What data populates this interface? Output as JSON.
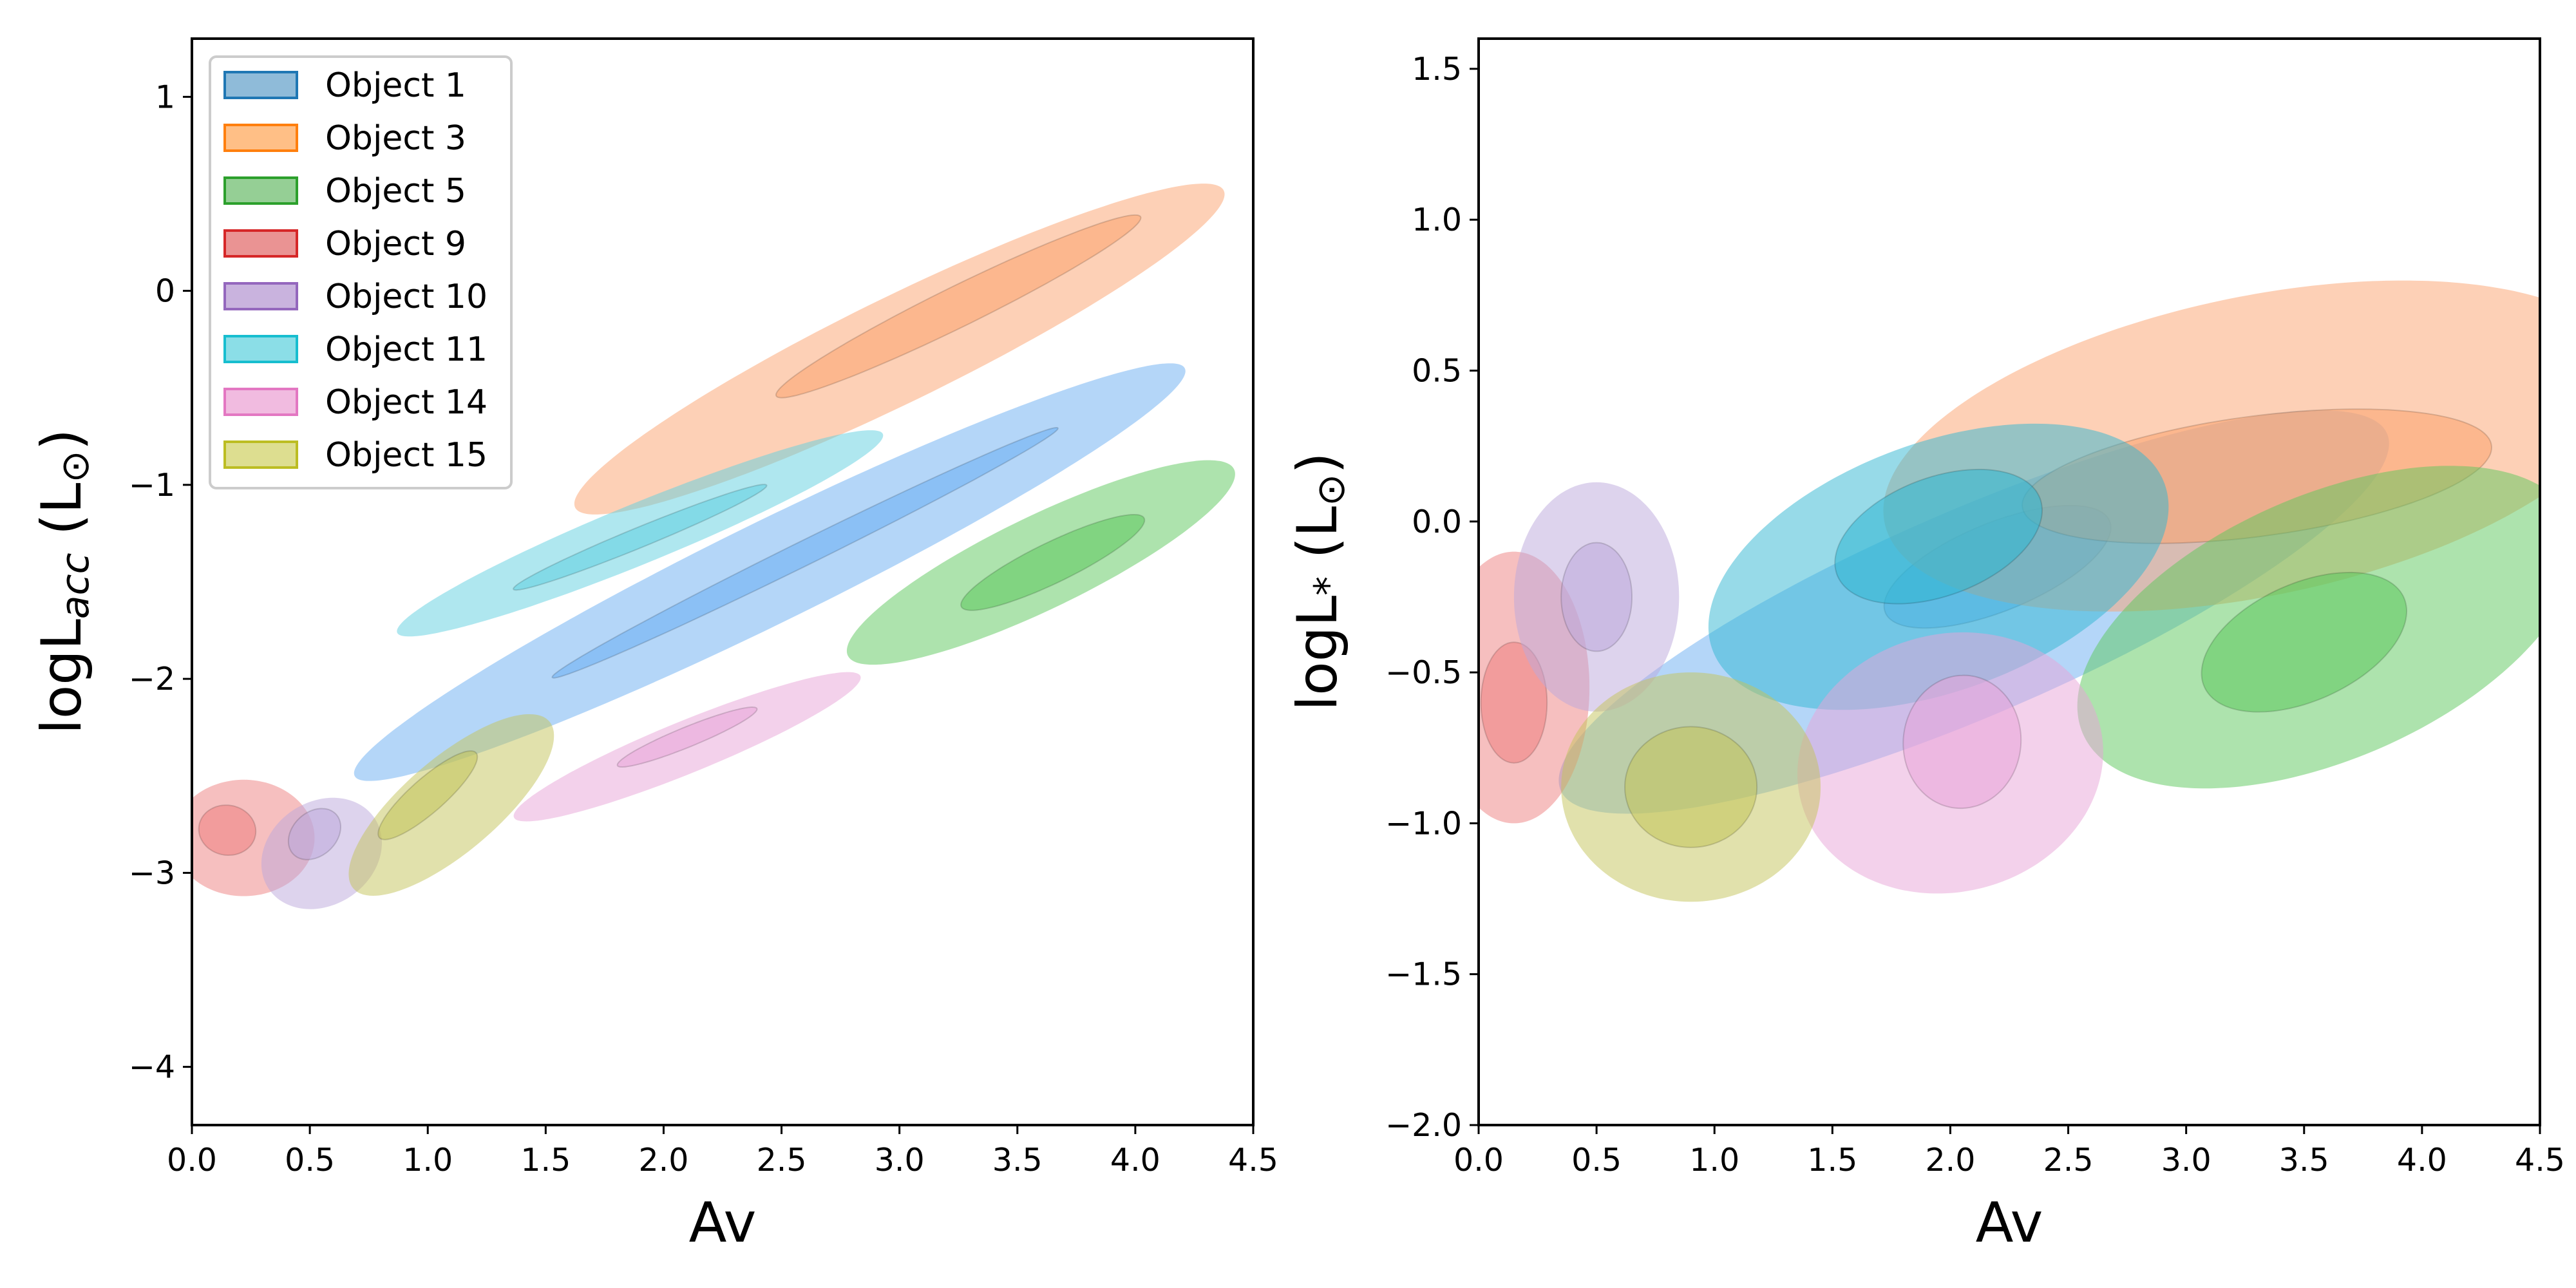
{
  "figure": {
    "panels": 2
  },
  "chart_data": [
    {
      "type": "contour",
      "xlabel": "Av",
      "ylabel_main": "logL",
      "ylabel_sub": "acc",
      "ylabel_unit": " (L",
      "ylabel_unit_sym": "⊙",
      "ylabel_close": ")",
      "xlim": [
        0,
        4.5
      ],
      "ylim": [
        -4.3,
        1.3
      ],
      "xticks": [
        0.0,
        0.5,
        1.0,
        1.5,
        2.0,
        2.5,
        3.0,
        3.5,
        4.0,
        4.5
      ],
      "xtick_labels": [
        "0.0",
        "0.5",
        "1.0",
        "1.5",
        "2.0",
        "2.5",
        "3.0",
        "3.5",
        "4.0",
        "4.5"
      ],
      "yticks": [
        -4,
        -3,
        -2,
        -1,
        0,
        1
      ],
      "ytick_labels": [
        "−4",
        "−3",
        "−2",
        "−1",
        "0",
        "1"
      ],
      "legend": {
        "location": "upper-left",
        "entries": [
          {
            "label": "Object 1",
            "color": "#1f77b4"
          },
          {
            "label": "Object 3",
            "color": "#ff7f0e"
          },
          {
            "label": "Object 5",
            "color": "#2ca02c"
          },
          {
            "label": "Object 9",
            "color": "#d62728"
          },
          {
            "label": "Object 10",
            "color": "#9467bd"
          },
          {
            "label": "Object 11",
            "color": "#17becf"
          },
          {
            "label": "Object 14",
            "color": "#e377c2"
          },
          {
            "label": "Object 15",
            "color": "#bcbd22"
          }
        ]
      },
      "series": [
        {
          "name": "Object 1",
          "color": "#6aaef2",
          "outer": {
            "cx": 2.45,
            "cy": -1.45,
            "sx": 2.05,
            "sw": 0.25,
            "slope": 0.6
          },
          "inner": {
            "cx": 2.6,
            "cy": -1.35,
            "sx": 1.25,
            "sw": 0.06,
            "slope": 0.6
          }
        },
        {
          "name": "Object 3",
          "color": "#fba26d",
          "outer": {
            "cx": 3.0,
            "cy": -0.3,
            "sx": 1.6,
            "sw": 0.26,
            "slope": 0.6
          },
          "inner": {
            "cx": 3.25,
            "cy": -0.08,
            "sx": 0.9,
            "sw": 0.1,
            "slope": 0.6
          }
        },
        {
          "name": "Object 5",
          "color": "#5cc85c",
          "outer": {
            "cx": 3.6,
            "cy": -1.4,
            "sx": 0.95,
            "sw": 0.23,
            "slope": 0.6
          },
          "inner": {
            "cx": 3.65,
            "cy": -1.4,
            "sx": 0.45,
            "sw": 0.1,
            "slope": 0.6
          }
        },
        {
          "name": "Object 9",
          "color": "#ee8080",
          "outer": {
            "cx": 0.22,
            "cy": -2.82,
            "sx": 0.3,
            "sw": 0.3,
            "slope": 0.3
          },
          "inner": {
            "cx": 0.15,
            "cy": -2.78,
            "sx": 0.12,
            "sw": 0.13,
            "slope": 0.3
          }
        },
        {
          "name": "Object 10",
          "color": "#bba7db",
          "outer": {
            "cx": 0.55,
            "cy": -2.9,
            "sx": 0.3,
            "sw": 0.24,
            "slope": 1.8
          },
          "inner": {
            "cx": 0.52,
            "cy": -2.8,
            "sx": 0.14,
            "sw": 0.1,
            "slope": 1.8
          }
        },
        {
          "name": "Object 11",
          "color": "#5fd0e0",
          "outer": {
            "cx": 1.9,
            "cy": -1.25,
            "sx": 1.15,
            "sw": 0.15,
            "slope": 0.5
          },
          "inner": {
            "cx": 1.9,
            "cy": -1.27,
            "sx": 0.6,
            "sw": 0.05,
            "slope": 0.5
          }
        },
        {
          "name": "Object 14",
          "color": "#e8a4d8",
          "outer": {
            "cx": 2.1,
            "cy": -2.35,
            "sx": 0.82,
            "sw": 0.13,
            "slope": 0.5
          },
          "inner": {
            "cx": 2.1,
            "cy": -2.3,
            "sx": 0.33,
            "sw": 0.05,
            "slope": 0.5
          }
        },
        {
          "name": "Object 15",
          "color": "#c3c45a",
          "outer": {
            "cx": 1.1,
            "cy": -2.65,
            "sx": 0.6,
            "sw": 0.22,
            "slope": 1.1
          },
          "inner": {
            "cx": 1.0,
            "cy": -2.6,
            "sx": 0.3,
            "sw": 0.08,
            "slope": 1.1
          }
        }
      ]
    },
    {
      "type": "contour",
      "xlabel": "Av",
      "ylabel_main": "logL",
      "ylabel_sub": "*",
      "ylabel_unit": " (L",
      "ylabel_unit_sym": "⊙",
      "ylabel_close": ")",
      "xlim": [
        0,
        4.5
      ],
      "ylim": [
        -2.0,
        1.6
      ],
      "xticks": [
        0.0,
        0.5,
        1.0,
        1.5,
        2.0,
        2.5,
        3.0,
        3.5,
        4.0,
        4.5
      ],
      "xtick_labels": [
        "0.0",
        "0.5",
        "1.0",
        "1.5",
        "2.0",
        "2.5",
        "3.0",
        "3.5",
        "4.0",
        "4.5"
      ],
      "yticks": [
        -2.0,
        -1.5,
        -1.0,
        -0.5,
        0.0,
        0.5,
        1.0,
        1.5
      ],
      "ytick_labels": [
        "−2.0",
        "−1.5",
        "−1.0",
        "−0.5",
        "0.0",
        "0.5",
        "1.0",
        "1.5"
      ],
      "series": [
        {
          "name": "Object 1",
          "color": "#6aaef2",
          "outer": {
            "cx": 2.1,
            "cy": -0.3,
            "sx": 1.85,
            "sw": 0.35,
            "slope": 0.33
          },
          "inner": {
            "cx": 2.2,
            "cy": -0.15,
            "sx": 0.5,
            "sw": 0.15,
            "slope": 0.3
          }
        },
        {
          "name": "Object 3",
          "color": "#fba26d",
          "outer": {
            "cx": 3.3,
            "cy": 0.25,
            "sx": 1.6,
            "sw": 0.5,
            "slope": 0.15
          },
          "inner": {
            "cx": 3.3,
            "cy": 0.15,
            "sx": 1.0,
            "sw": 0.2,
            "slope": 0.1
          }
        },
        {
          "name": "Object 5",
          "color": "#5cc85c",
          "outer": {
            "cx": 3.6,
            "cy": -0.35,
            "sx": 1.1,
            "sw": 0.45,
            "slope": 0.3
          },
          "inner": {
            "cx": 3.5,
            "cy": -0.4,
            "sx": 0.45,
            "sw": 0.2,
            "slope": 0.3
          }
        },
        {
          "name": "Object 9",
          "color": "#ee8080",
          "outer": {
            "cx": 0.15,
            "cy": -0.55,
            "sx": 0.32,
            "sw": 0.45,
            "slope": 0.0
          },
          "inner": {
            "cx": 0.15,
            "cy": -0.6,
            "sx": 0.14,
            "sw": 0.2,
            "slope": 0.0
          }
        },
        {
          "name": "Object 10",
          "color": "#bba7db",
          "outer": {
            "cx": 0.5,
            "cy": -0.25,
            "sx": 0.35,
            "sw": 0.38,
            "slope": 0.0
          },
          "inner": {
            "cx": 0.5,
            "cy": -0.25,
            "sx": 0.15,
            "sw": 0.18,
            "slope": 0.0
          }
        },
        {
          "name": "Object 11",
          "color": "#2fb6d2",
          "outer": {
            "cx": 1.95,
            "cy": -0.15,
            "sx": 1.0,
            "sw": 0.42,
            "slope": 0.25
          },
          "inner": {
            "cx": 1.95,
            "cy": -0.05,
            "sx": 0.45,
            "sw": 0.2,
            "slope": 0.25
          }
        },
        {
          "name": "Object 14",
          "color": "#e8a4d8",
          "outer": {
            "cx": 2.0,
            "cy": -0.8,
            "sx": 0.65,
            "sw": 0.43,
            "slope": 0.1
          },
          "inner": {
            "cx": 2.05,
            "cy": -0.73,
            "sx": 0.25,
            "sw": 0.22,
            "slope": 0.1
          }
        },
        {
          "name": "Object 15",
          "color": "#c3c45a",
          "outer": {
            "cx": 0.9,
            "cy": -0.88,
            "sx": 0.55,
            "sw": 0.38,
            "slope": 0.0
          },
          "inner": {
            "cx": 0.9,
            "cy": -0.88,
            "sx": 0.28,
            "sw": 0.2,
            "slope": 0.0
          }
        }
      ]
    }
  ]
}
